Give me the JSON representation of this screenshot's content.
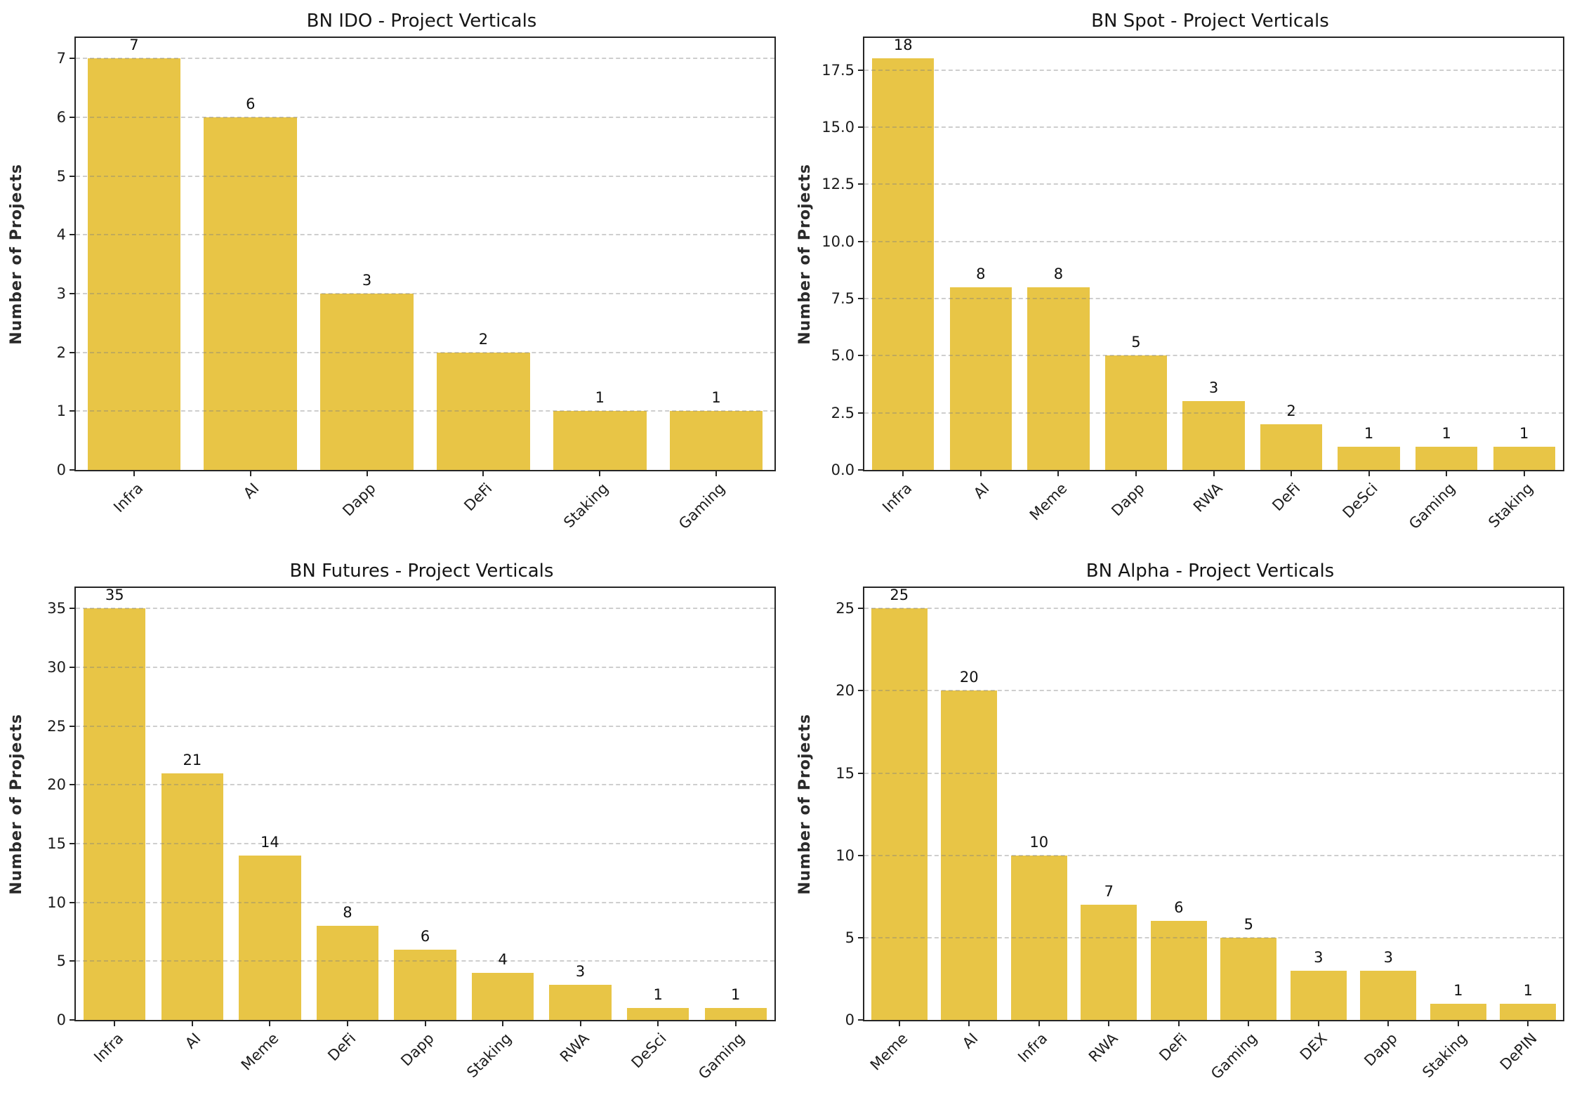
{
  "figure": {
    "background": "#ffffff",
    "bar_color": "#e8c546",
    "grid_color": "#7d7d7d",
    "spine_color": "#262626",
    "text_color": "#1a1a1a",
    "grid_style": "dashed-horizontal",
    "legend": false
  },
  "chart_data": [
    {
      "type": "bar",
      "title": "BN IDO - Project Verticals",
      "xlabel": "",
      "ylabel": "Number of Projects",
      "categories": [
        "Infra",
        "AI",
        "Dapp",
        "DeFi",
        "Staking",
        "Gaming"
      ],
      "values": [
        7,
        6,
        3,
        2,
        1,
        1
      ],
      "bar_labels": [
        "7",
        "6",
        "3",
        "2",
        "1",
        "1"
      ],
      "yticks": [
        0,
        1,
        2,
        3,
        4,
        5,
        6,
        7
      ],
      "ytick_labels": [
        "0",
        "1",
        "2",
        "3",
        "4",
        "5",
        "6",
        "7"
      ],
      "ylim": [
        0,
        7.35
      ],
      "grid": true,
      "xtick_rotation": 45
    },
    {
      "type": "bar",
      "title": "BN Spot - Project Verticals",
      "xlabel": "",
      "ylabel": "Number of Projects",
      "categories": [
        "Infra",
        "AI",
        "Meme",
        "Dapp",
        "RWA",
        "DeFi",
        "DeSci",
        "Gaming",
        "Staking"
      ],
      "values": [
        18,
        8,
        8,
        5,
        3,
        2,
        1,
        1,
        1
      ],
      "bar_labels": [
        "18",
        "8",
        "8",
        "5",
        "3",
        "2",
        "1",
        "1",
        "1"
      ],
      "yticks": [
        0,
        2.5,
        5,
        7.5,
        10,
        12.5,
        15,
        17.5
      ],
      "ytick_labels": [
        "0.0",
        "2.5",
        "5.0",
        "7.5",
        "10.0",
        "12.5",
        "15.0",
        "17.5"
      ],
      "ylim": [
        0,
        18.9
      ],
      "grid": true,
      "xtick_rotation": 45
    },
    {
      "type": "bar",
      "title": "BN Futures - Project Verticals",
      "xlabel": "",
      "ylabel": "Number of Projects",
      "categories": [
        "Infra",
        "AI",
        "Meme",
        "DeFi",
        "Dapp",
        "Staking",
        "RWA",
        "DeSci",
        "Gaming"
      ],
      "values": [
        35,
        21,
        14,
        8,
        6,
        4,
        3,
        1,
        1
      ],
      "bar_labels": [
        "35",
        "21",
        "14",
        "8",
        "6",
        "4",
        "3",
        "1",
        "1"
      ],
      "yticks": [
        0,
        5,
        10,
        15,
        20,
        25,
        30,
        35
      ],
      "ytick_labels": [
        "0",
        "5",
        "10",
        "15",
        "20",
        "25",
        "30",
        "35"
      ],
      "ylim": [
        0,
        36.75
      ],
      "grid": true,
      "xtick_rotation": 45
    },
    {
      "type": "bar",
      "title": "BN Alpha - Project Verticals",
      "xlabel": "",
      "ylabel": "Number of Projects",
      "categories": [
        "Meme",
        "AI",
        "Infra",
        "RWA",
        "DeFi",
        "Gaming",
        "DEX",
        "Dapp",
        "Staking",
        "DePIN"
      ],
      "values": [
        25,
        20,
        10,
        7,
        6,
        5,
        3,
        3,
        1,
        1
      ],
      "bar_labels": [
        "25",
        "20",
        "10",
        "7",
        "6",
        "5",
        "3",
        "3",
        "1",
        "1"
      ],
      "yticks": [
        0,
        5,
        10,
        15,
        20,
        25
      ],
      "ytick_labels": [
        "0",
        "5",
        "10",
        "15",
        "20",
        "25"
      ],
      "ylim": [
        0,
        26.25
      ],
      "grid": true,
      "xtick_rotation": 45
    }
  ]
}
